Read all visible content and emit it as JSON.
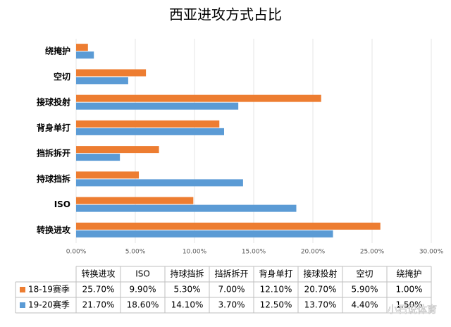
{
  "chart_data": {
    "type": "bar",
    "orientation": "horizontal",
    "title": "西亚进攻方式占比",
    "categories": [
      "转换进攻",
      "ISO",
      "持球挡拆",
      "挡拆拆开",
      "背身单打",
      "接球投射",
      "空切",
      "绕掩护"
    ],
    "series": [
      {
        "name": "18-19赛季",
        "color": "#ED7D31",
        "values": [
          25.7,
          9.9,
          5.3,
          7.0,
          12.1,
          20.7,
          5.9,
          1.0
        ],
        "value_labels": [
          "25.70%",
          "9.90%",
          "5.30%",
          "7.00%",
          "12.10%",
          "20.70%",
          "5.90%",
          "1.00%"
        ]
      },
      {
        "name": "19-20赛季",
        "color": "#5B9BD5",
        "values": [
          21.7,
          18.6,
          14.1,
          3.7,
          12.5,
          13.7,
          4.4,
          1.5
        ],
        "value_labels": [
          "21.70%",
          "18.60%",
          "14.10%",
          "3.70%",
          "12.50%",
          "13.70%",
          "4.40%",
          "1.50%"
        ]
      }
    ],
    "xlim": [
      0,
      30
    ],
    "xticks": [
      {
        "value": 0,
        "label": "0.00%"
      },
      {
        "value": 5,
        "label": "5.00%"
      },
      {
        "value": 10,
        "label": "10.00%"
      },
      {
        "value": 15,
        "label": "15.00%"
      },
      {
        "value": 20,
        "label": "20.00%"
      },
      {
        "value": 25,
        "label": "25.00%"
      },
      {
        "value": 30,
        "label": "30.00%"
      }
    ],
    "grid": true
  },
  "watermark": "小石说体育"
}
